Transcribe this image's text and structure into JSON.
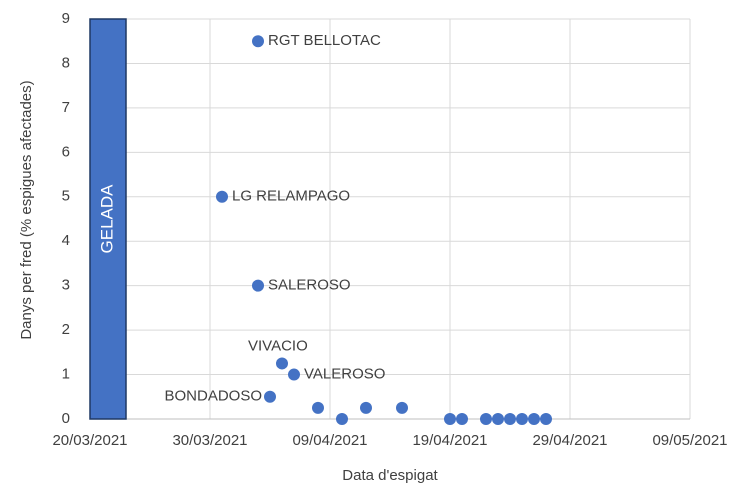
{
  "chart_data": {
    "type": "scatter",
    "x_label": "Data d'espigat",
    "y_label": "Danys per fred (% espigues afectades)",
    "color": "#4472c4",
    "grid": true,
    "xlim": [
      "20/03/2021",
      "09/05/2021"
    ],
    "xticks": [
      "20/03/2021",
      "30/03/2021",
      "09/04/2021",
      "19/04/2021",
      "29/04/2021",
      "09/05/2021"
    ],
    "ylim": [
      0,
      9
    ],
    "yticks": [
      0,
      1,
      2,
      3,
      4,
      5,
      6,
      7,
      8,
      9
    ],
    "frost_band": {
      "label": "GELADA",
      "x": [
        "20/03/2021",
        "23/03/2021"
      ]
    },
    "series": [
      {
        "x": [
          "03/04/2021",
          "31/03/2021",
          "03/04/2021",
          "05/04/2021",
          "06/04/2021",
          "04/04/2021",
          "08/04/2021",
          "10/04/2021",
          "12/04/2021",
          "15/04/2021",
          "19/04/2021",
          "20/04/2021",
          "22/04/2021",
          "23/04/2021",
          "24/04/2021",
          "25/04/2021",
          "26/04/2021",
          "27/04/2021"
        ],
        "values": [
          8.5,
          5,
          3,
          1.25,
          1,
          0.5,
          0.25,
          0,
          0.25,
          0.25,
          0,
          0,
          0,
          0,
          0,
          0,
          0,
          0
        ],
        "labels": [
          "RGT BELLOTAC",
          "LG RELAMPAGO",
          "SALEROSO",
          "VIVACIO",
          "VALEROSO",
          "BONDADOSO",
          null,
          null,
          null,
          null,
          null,
          null,
          null,
          null,
          null,
          null,
          null,
          null
        ]
      }
    ]
  }
}
